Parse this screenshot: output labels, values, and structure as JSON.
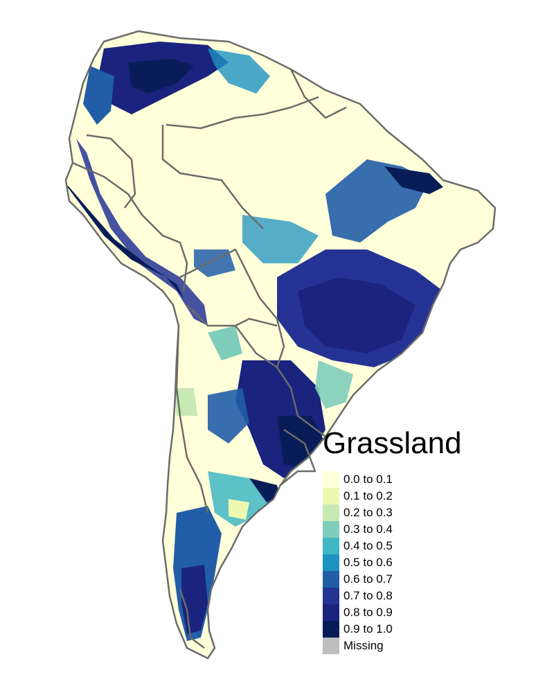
{
  "title": "Grassland",
  "legend": [
    {
      "label": "0.0 to 0.1",
      "color": "#ffffd9"
    },
    {
      "label": "0.1 to 0.2",
      "color": "#edf8b1"
    },
    {
      "label": "0.2 to 0.3",
      "color": "#c7e9b4"
    },
    {
      "label": "0.3 to 0.4",
      "color": "#7fcdbb"
    },
    {
      "label": "0.4 to 0.5",
      "color": "#41b6c4"
    },
    {
      "label": "0.5 to 0.6",
      "color": "#1d91c0"
    },
    {
      "label": "0.6 to 0.7",
      "color": "#225ea8"
    },
    {
      "label": "0.7 to 0.8",
      "color": "#253494"
    },
    {
      "label": "0.8 to 0.9",
      "color": "#1a237e"
    },
    {
      "label": "0.9 to 1.0",
      "color": "#081d58"
    },
    {
      "label": "Missing",
      "color": "#bebebe"
    }
  ],
  "border_color": "#6b6b6b",
  "land_color": "#ffffd9"
}
